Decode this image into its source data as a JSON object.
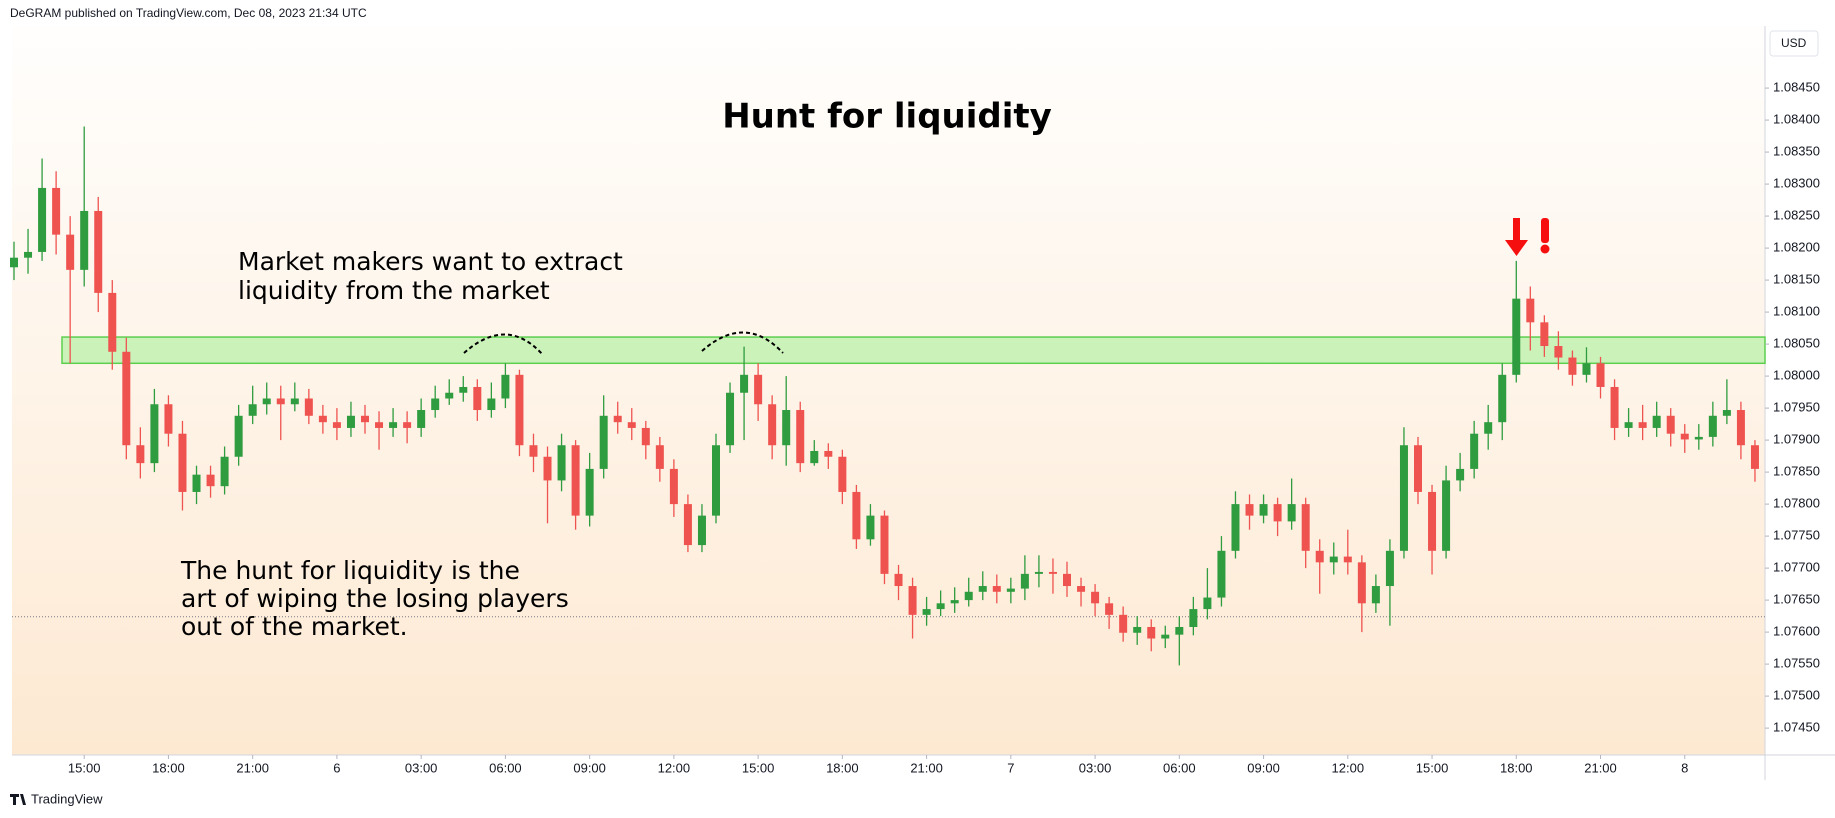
{
  "header": "DeGRAM published on TradingView.com, Dec 08, 2023 21:34 UTC",
  "currency": "USD",
  "footer": "TradingView",
  "chart_data": {
    "type": "candlestick",
    "title": "Hunt for liquidity",
    "annotations": [
      [
        "Market makers want to extract",
        "liquidity from the market"
      ],
      [
        "The hunt for liquidity is the",
        "art of wiping the losing players",
        "out of the market."
      ]
    ],
    "up_color": "#2e9c3f",
    "down_color": "#ef5350",
    "zone": {
      "top": 1.08061,
      "bottom": 1.0802,
      "color": "#b8f0a8",
      "border": "#5ccf4f"
    },
    "price_line": 1.07624,
    "ylim": [
      1.07408,
      1.08547
    ],
    "yticks": [
      {
        "value": 1.0745,
        "label": "1.07450"
      },
      {
        "value": 1.075,
        "label": "1.07500"
      },
      {
        "value": 1.0755,
        "label": "1.07550"
      },
      {
        "value": 1.076,
        "label": "1.07600"
      },
      {
        "value": 1.0765,
        "label": "1.07650"
      },
      {
        "value": 1.077,
        "label": "1.07700"
      },
      {
        "value": 1.0775,
        "label": "1.07750"
      },
      {
        "value": 1.078,
        "label": "1.07800"
      },
      {
        "value": 1.0785,
        "label": "1.07850"
      },
      {
        "value": 1.079,
        "label": "1.07900"
      },
      {
        "value": 1.0795,
        "label": "1.07950"
      },
      {
        "value": 1.08,
        "label": "1.08000"
      },
      {
        "value": 1.0805,
        "label": "1.08050"
      },
      {
        "value": 1.081,
        "label": "1.08100"
      },
      {
        "value": 1.0815,
        "label": "1.08150"
      },
      {
        "value": 1.082,
        "label": "1.08200"
      },
      {
        "value": 1.0825,
        "label": "1.08250"
      },
      {
        "value": 1.083,
        "label": "1.08300"
      },
      {
        "value": 1.0835,
        "label": "1.08350"
      },
      {
        "value": 1.084,
        "label": "1.08400"
      },
      {
        "value": 1.0845,
        "label": "1.08450"
      }
    ],
    "xticks": [
      "15:00",
      "18:00",
      "21:00",
      "6",
      "03:00",
      "06:00",
      "09:00",
      "12:00",
      "15:00",
      "18:00",
      "21:00",
      "7",
      "03:00",
      "06:00",
      "09:00",
      "12:00",
      "15:00",
      "18:00",
      "21:00",
      "8"
    ],
    "open": [
      1.0817,
      1.08185,
      1.08194,
      1.08294,
      1.08221,
      1.08166,
      1.08258,
      1.0813,
      1.08038,
      1.07892,
      1.07864,
      1.07956,
      1.0791,
      1.07819,
      1.07846,
      1.07828,
      1.07874,
      1.07938,
      1.07956,
      1.07965,
      1.07956,
      1.07965,
      1.07938,
      1.07928,
      1.07919,
      1.07938,
      1.07928,
      1.07919,
      1.07928,
      1.07919,
      1.07947,
      1.07965,
      1.07974,
      1.07983,
      1.07947,
      1.07965,
      1.08002,
      1.07892,
      1.07874,
      1.07837,
      1.07892,
      1.07782,
      1.07855,
      1.07938,
      1.07928,
      1.07919,
      1.07892,
      1.07855,
      1.078,
      1.07736,
      1.07782,
      1.07892,
      1.07974,
      1.08002,
      1.07956,
      1.07892,
      1.07947,
      1.07864,
      1.07883,
      1.07874,
      1.07819,
      1.07745,
      1.07782,
      1.07691,
      1.07672,
      1.07627,
      1.07636,
      1.07645,
      1.0765,
      1.07663,
      1.07672,
      1.07663,
      1.07668,
      1.07691,
      1.07694,
      1.07691,
      1.07672,
      1.07663,
      1.07645,
      1.07627,
      1.07599,
      1.07608,
      1.0759,
      1.07596,
      1.07608,
      1.07636,
      1.07654,
      1.07727,
      1.078,
      1.07782,
      1.078,
      1.07773,
      1.078,
      1.07727,
      1.07709,
      1.07718,
      1.07709,
      1.07645,
      1.07672,
      1.07727,
      1.07892,
      1.07819,
      1.07727,
      1.07837,
      1.07855,
      1.0791,
      1.07928,
      1.08002,
      1.08121,
      1.08084,
      1.08047,
      1.08029,
      1.08002,
      1.0802,
      1.07983,
      1.07919,
      1.07928,
      1.07919,
      1.07938,
      1.0791,
      1.07901,
      1.07905,
      1.07938,
      1.07947,
      1.07892
    ],
    "high": [
      1.0821,
      1.0823,
      1.0834,
      1.0832,
      1.0825,
      1.0839,
      1.0828,
      1.0815,
      1.0806,
      1.0792,
      1.0798,
      1.0797,
      1.0793,
      1.0786,
      1.0786,
      1.0789,
      1.07955,
      1.07985,
      1.0799,
      1.07985,
      1.0799,
      1.0798,
      1.07955,
      1.0795,
      1.0796,
      1.07955,
      1.07945,
      1.0795,
      1.07945,
      1.07965,
      1.07985,
      1.07995,
      1.08,
      1.07995,
      1.0799,
      1.0802,
      1.0801,
      1.0791,
      1.0789,
      1.0791,
      1.079,
      1.0788,
      1.0797,
      1.0796,
      1.0795,
      1.0793,
      1.07905,
      1.0787,
      1.07815,
      1.078,
      1.0791,
      1.0799,
      1.08046,
      1.0802,
      1.0797,
      1.08,
      1.0796,
      1.079,
      1.07895,
      1.07885,
      1.0783,
      1.078,
      1.0779,
      1.07705,
      1.07685,
      1.07655,
      1.07665,
      1.0767,
      1.07685,
      1.07695,
      1.0769,
      1.07685,
      1.0772,
      1.0772,
      1.07715,
      1.0771,
      1.07685,
      1.07675,
      1.07655,
      1.0764,
      1.07625,
      1.0762,
      1.0761,
      1.07625,
      1.07655,
      1.077,
      1.0775,
      1.0782,
      1.07815,
      1.07815,
      1.0781,
      1.0784,
      1.0781,
      1.07745,
      1.0774,
      1.0776,
      1.0772,
      1.0769,
      1.07745,
      1.0792,
      1.07905,
      1.0783,
      1.0786,
      1.0788,
      1.0793,
      1.07955,
      1.0802,
      1.0818,
      1.0814,
      1.08095,
      1.0807,
      1.0804,
      1.08045,
      1.0803,
      1.07995,
      1.0795,
      1.07955,
      1.0796,
      1.0795,
      1.07925,
      1.07925,
      1.0796,
      1.07995,
      1.0796,
      1.079
    ],
    "low": [
      1.0815,
      1.0816,
      1.0818,
      1.0819,
      1.0802,
      1.0814,
      1.081,
      1.0801,
      1.0787,
      1.0784,
      1.0785,
      1.0789,
      1.0779,
      1.078,
      1.0781,
      1.07815,
      1.0786,
      1.07925,
      1.0794,
      1.079,
      1.07945,
      1.07925,
      1.0791,
      1.079,
      1.07905,
      1.0791,
      1.07885,
      1.07905,
      1.07895,
      1.07905,
      1.07935,
      1.07955,
      1.0796,
      1.0793,
      1.07935,
      1.0795,
      1.07875,
      1.0785,
      1.0777,
      1.0782,
      1.0776,
      1.07765,
      1.0784,
      1.0791,
      1.079,
      1.0787,
      1.07835,
      1.0778,
      1.07725,
      1.07725,
      1.0777,
      1.0788,
      1.079,
      1.0793,
      1.0787,
      1.0786,
      1.0785,
      1.0786,
      1.07855,
      1.078,
      1.0773,
      1.07735,
      1.07675,
      1.0765,
      1.0759,
      1.0761,
      1.07625,
      1.0763,
      1.0764,
      1.0765,
      1.07645,
      1.07645,
      1.0765,
      1.0767,
      1.0766,
      1.07655,
      1.0764,
      1.07625,
      1.07605,
      1.07585,
      1.0758,
      1.0757,
      1.07575,
      1.07548,
      1.07595,
      1.0762,
      1.0764,
      1.07715,
      1.0776,
      1.0777,
      1.0775,
      1.0776,
      1.077,
      1.0766,
      1.0769,
      1.0769,
      1.076,
      1.0763,
      1.0761,
      1.07715,
      1.078,
      1.0769,
      1.07715,
      1.0782,
      1.0784,
      1.07885,
      1.079,
      1.0799,
      1.0804,
      1.0803,
      1.0801,
      1.07985,
      1.0799,
      1.07965,
      1.079,
      1.07905,
      1.079,
      1.07905,
      1.0789,
      1.0788,
      1.07885,
      1.0789,
      1.07925,
      1.0787,
      1.07835
    ],
    "close": [
      1.08185,
      1.08194,
      1.08294,
      1.08221,
      1.08166,
      1.08258,
      1.0813,
      1.08038,
      1.07892,
      1.07864,
      1.07956,
      1.0791,
      1.07819,
      1.07846,
      1.07828,
      1.07874,
      1.07938,
      1.07956,
      1.07965,
      1.07956,
      1.07965,
      1.07938,
      1.07928,
      1.07919,
      1.07938,
      1.07928,
      1.07919,
      1.07928,
      1.07919,
      1.07947,
      1.07965,
      1.07974,
      1.07983,
      1.07947,
      1.07965,
      1.08002,
      1.07892,
      1.07874,
      1.07837,
      1.07892,
      1.07782,
      1.07855,
      1.07938,
      1.07928,
      1.07919,
      1.07892,
      1.07855,
      1.078,
      1.07736,
      1.07782,
      1.07892,
      1.07974,
      1.08002,
      1.07956,
      1.07892,
      1.07947,
      1.07864,
      1.07883,
      1.07874,
      1.07819,
      1.07745,
      1.07782,
      1.07691,
      1.07672,
      1.07627,
      1.07636,
      1.07645,
      1.0765,
      1.07663,
      1.07672,
      1.07663,
      1.07668,
      1.07691,
      1.07694,
      1.07691,
      1.07672,
      1.07663,
      1.07645,
      1.07627,
      1.07599,
      1.07608,
      1.0759,
      1.07596,
      1.07608,
      1.07636,
      1.07654,
      1.07727,
      1.078,
      1.07782,
      1.078,
      1.07773,
      1.078,
      1.07727,
      1.07709,
      1.07718,
      1.07709,
      1.07645,
      1.07672,
      1.07727,
      1.07892,
      1.07819,
      1.07727,
      1.07837,
      1.07855,
      1.0791,
      1.07928,
      1.08002,
      1.08121,
      1.08084,
      1.08047,
      1.08029,
      1.08002,
      1.0802,
      1.07983,
      1.07919,
      1.07928,
      1.07919,
      1.07938,
      1.0791,
      1.07901,
      1.07905,
      1.07938,
      1.07947,
      1.07892,
      1.07855
    ]
  }
}
